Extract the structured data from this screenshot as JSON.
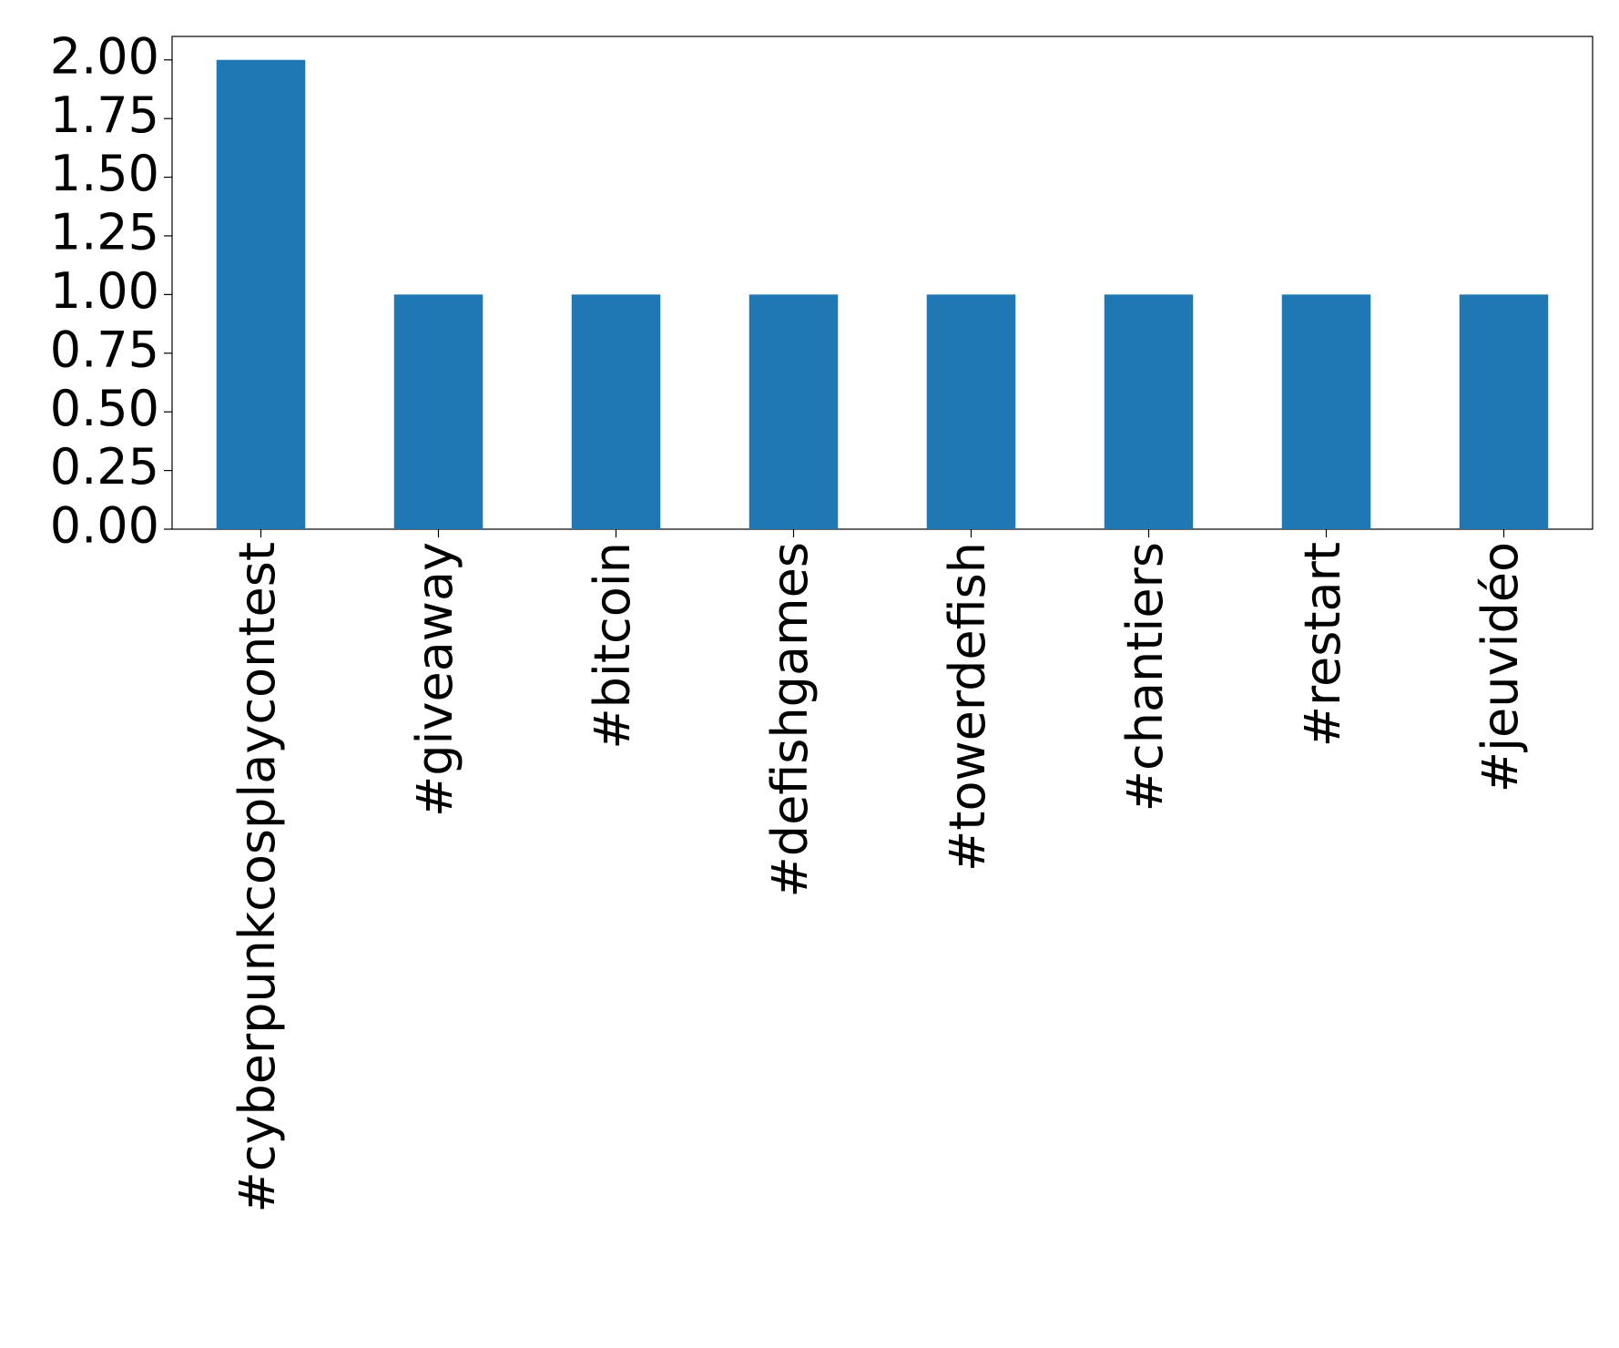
{
  "chart_data": {
    "type": "bar",
    "categories": [
      "#cyberpunkcosplaycontest",
      "#giveaway",
      "#bitcoin",
      "#defishgames",
      "#towerdefish",
      "#chantiers",
      "#restart",
      "#jeuvidéo"
    ],
    "values": [
      2,
      1,
      1,
      1,
      1,
      1,
      1,
      1
    ],
    "color": "#1f77b4",
    "ylim": [
      0,
      2.1
    ],
    "yticks": [
      {
        "value": 0,
        "label": "0.00"
      },
      {
        "value": 0.25,
        "label": "0.25"
      },
      {
        "value": 0.5,
        "label": "0.50"
      },
      {
        "value": 0.75,
        "label": "0.75"
      },
      {
        "value": 1,
        "label": "1.00"
      },
      {
        "value": 1.25,
        "label": "1.25"
      },
      {
        "value": 1.5,
        "label": "1.50"
      },
      {
        "value": 1.75,
        "label": "1.75"
      },
      {
        "value": 2,
        "label": "2.00"
      }
    ],
    "grid": false
  }
}
